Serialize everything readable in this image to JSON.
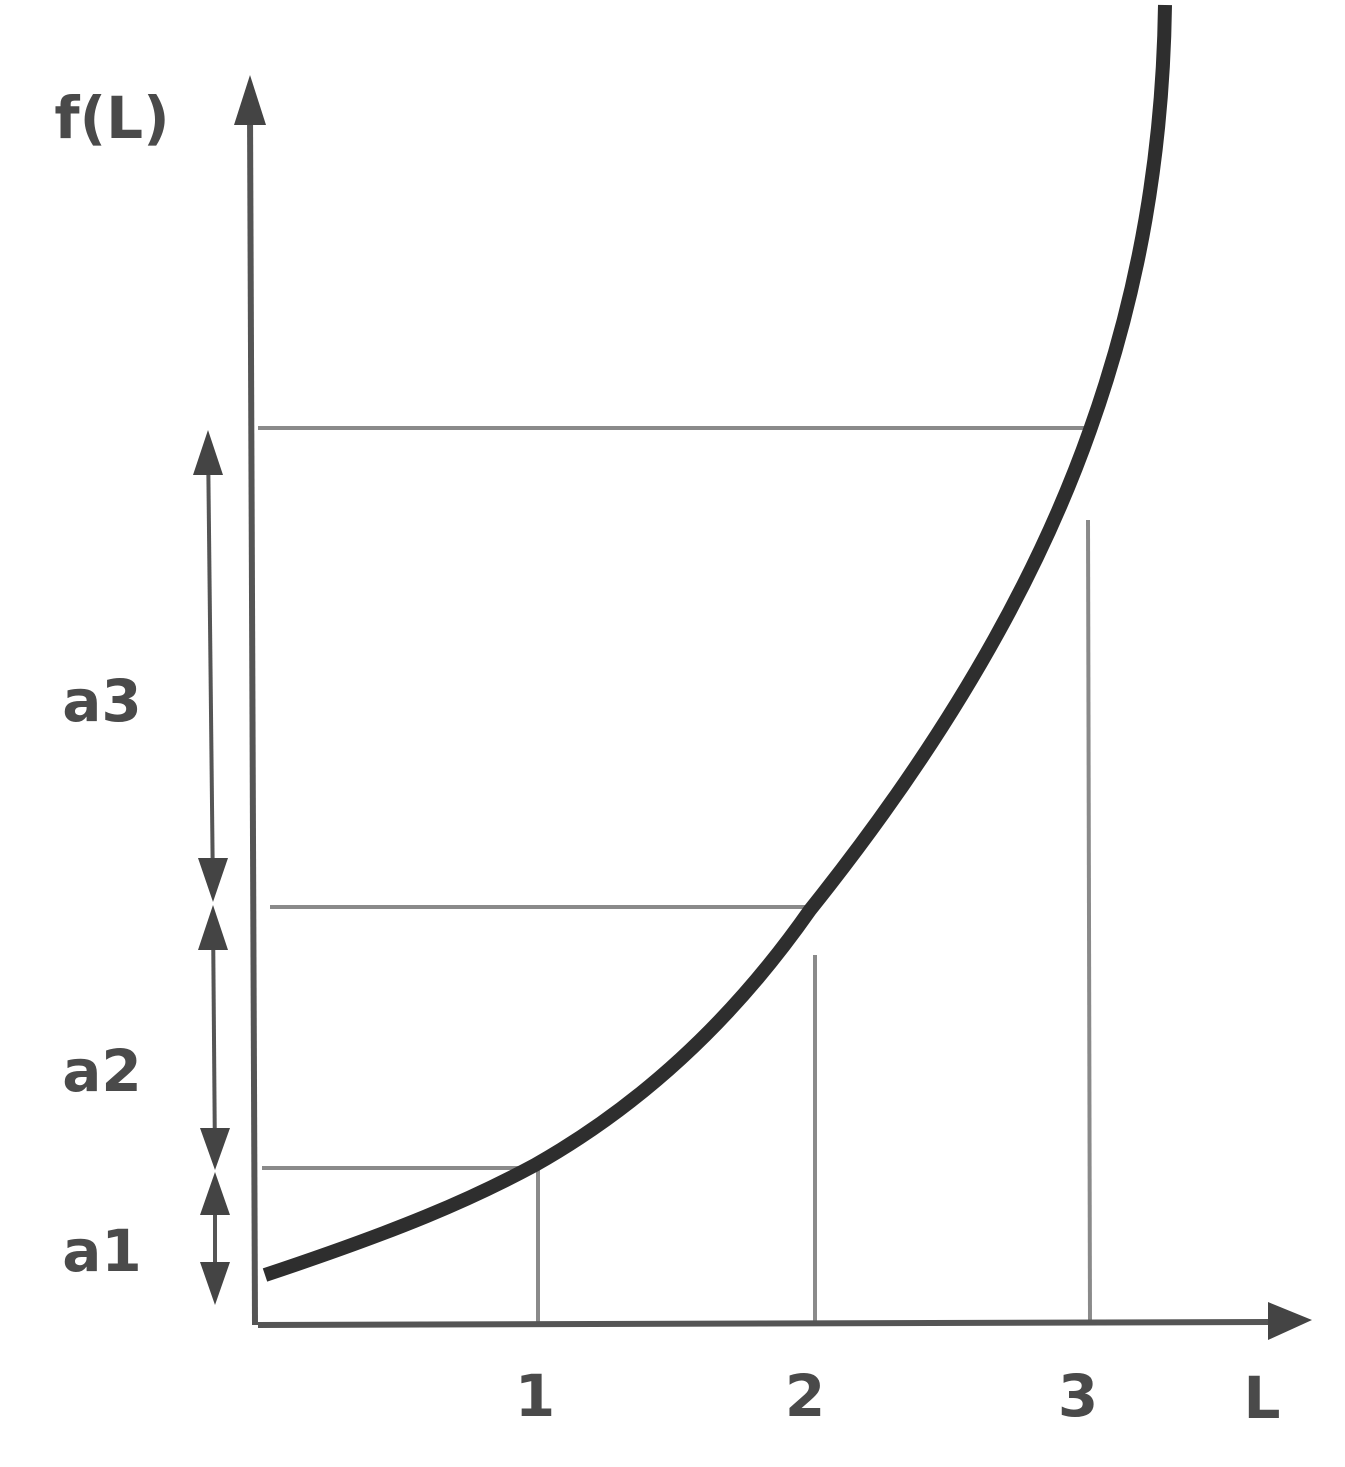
{
  "axes": {
    "y_label": "f(L)",
    "x_label": "L",
    "x_ticks": [
      "1",
      "2",
      "3"
    ]
  },
  "segments": [
    "a1",
    "a2",
    "a3"
  ]
}
